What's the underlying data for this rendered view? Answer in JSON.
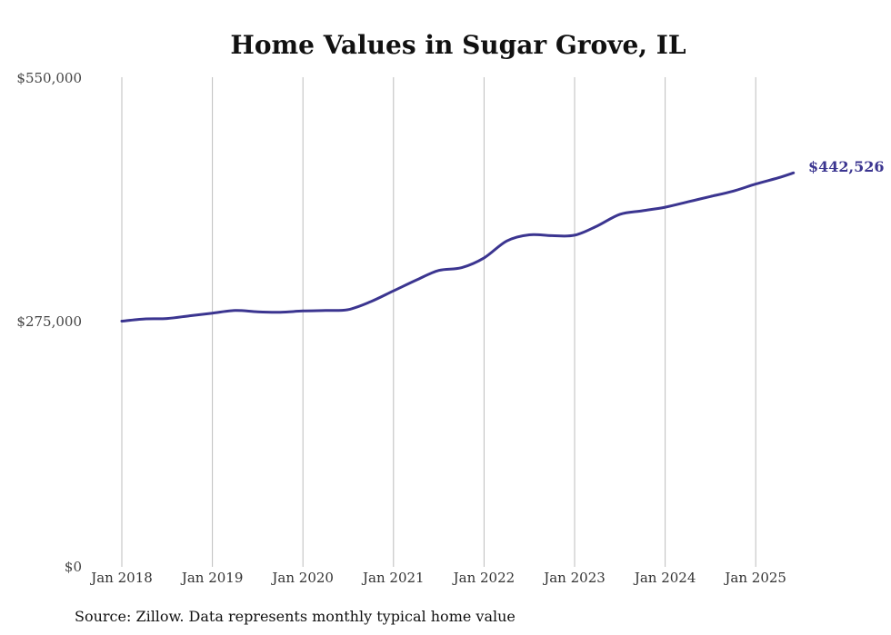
{
  "chart_data": {
    "type": "line",
    "title": "Home Values in Sugar Grove, IL",
    "xlabel": "",
    "ylabel": "",
    "source": "Source: Zillow. Data represents monthly typical home value",
    "ylim": [
      0,
      550000
    ],
    "y_ticks": [
      "$0",
      "$275,000",
      "$550,000"
    ],
    "x_ticks": [
      "Jan 2018",
      "Jan 2019",
      "Jan 2020",
      "Jan 2021",
      "Jan 2022",
      "Jan 2023",
      "Jan 2024",
      "Jan 2025"
    ],
    "grid": "vertical",
    "line_color": "#3b3590",
    "end_label": "$442,526",
    "series": [
      {
        "values_by_month": [
          {
            "x": "2018-01",
            "y": 276000
          },
          {
            "x": "2018-04",
            "y": 278500
          },
          {
            "x": "2018-07",
            "y": 279000
          },
          {
            "x": "2018-10",
            "y": 282000
          },
          {
            "x": "2019-01",
            "y": 285000
          },
          {
            "x": "2019-04",
            "y": 288000
          },
          {
            "x": "2019-07",
            "y": 286500
          },
          {
            "x": "2019-10",
            "y": 286000
          },
          {
            "x": "2020-01",
            "y": 287500
          },
          {
            "x": "2020-04",
            "y": 288000
          },
          {
            "x": "2020-07",
            "y": 289000
          },
          {
            "x": "2020-10",
            "y": 298000
          },
          {
            "x": "2021-01",
            "y": 310000
          },
          {
            "x": "2021-04",
            "y": 322000
          },
          {
            "x": "2021-07",
            "y": 333000
          },
          {
            "x": "2021-10",
            "y": 336000
          },
          {
            "x": "2022-01",
            "y": 347000
          },
          {
            "x": "2022-04",
            "y": 366000
          },
          {
            "x": "2022-07",
            "y": 373000
          },
          {
            "x": "2022-10",
            "y": 372000
          },
          {
            "x": "2023-01",
            "y": 372500
          },
          {
            "x": "2023-04",
            "y": 383000
          },
          {
            "x": "2023-07",
            "y": 396000
          },
          {
            "x": "2023-10",
            "y": 400000
          },
          {
            "x": "2024-01",
            "y": 404000
          },
          {
            "x": "2024-04",
            "y": 410000
          },
          {
            "x": "2024-07",
            "y": 416000
          },
          {
            "x": "2024-10",
            "y": 422000
          },
          {
            "x": "2025-01",
            "y": 430000
          },
          {
            "x": "2025-04",
            "y": 437000
          },
          {
            "x": "2025-06",
            "y": 442526
          }
        ]
      }
    ]
  }
}
